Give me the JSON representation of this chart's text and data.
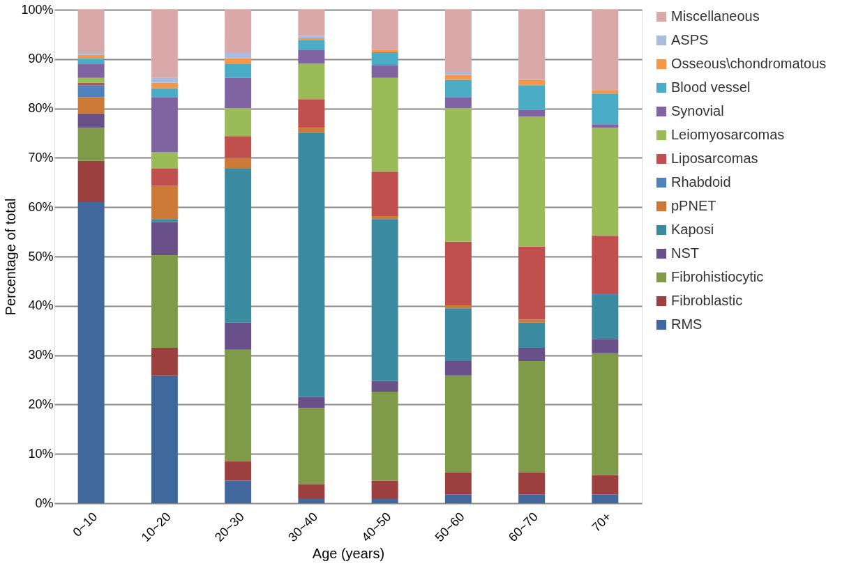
{
  "chart_data": {
    "type": "bar",
    "stacked": true,
    "xlabel": "Age (years)",
    "ylabel": "Percentage of total",
    "categories": [
      "0~10",
      "10~20",
      "20~30",
      "30~40",
      "40~50",
      "50~60",
      "60~70",
      "70+"
    ],
    "series": [
      {
        "name": "RMS",
        "color": "#40689c",
        "values": [
          61.0,
          25.9,
          4.6,
          1.0,
          1.0,
          1.8,
          1.8,
          1.8
        ]
      },
      {
        "name": "Fibroblastic",
        "color": "#9c3f3f",
        "values": [
          8.4,
          5.6,
          3.9,
          2.9,
          3.6,
          4.5,
          4.5,
          3.9
        ]
      },
      {
        "name": "Fibrohistiocytic",
        "color": "#7f9a48",
        "values": [
          6.7,
          18.8,
          22.6,
          15.4,
          18.0,
          19.6,
          22.5,
          24.7
        ]
      },
      {
        "name": "NST",
        "color": "#6a5088",
        "values": [
          2.9,
          6.7,
          5.5,
          2.2,
          2.2,
          2.9,
          2.7,
          2.9
        ]
      },
      {
        "name": "Kaposi",
        "color": "#3a8ba0",
        "values": [
          0,
          0.6,
          31.2,
          53.6,
          32.8,
          10.7,
          5.1,
          8.8
        ]
      },
      {
        "name": "pPNET",
        "color": "#cc7a36",
        "values": [
          3.3,
          6.7,
          2.2,
          1.0,
          0.6,
          0.6,
          0.6,
          0
        ]
      },
      {
        "name": "Rhabdoid",
        "color": "#4f81bd",
        "values": [
          2.4,
          0,
          0,
          0,
          0,
          0,
          0,
          0.4
        ]
      },
      {
        "name": "Liposarcomas",
        "color": "#c0504d",
        "values": [
          0.5,
          3.5,
          4.4,
          5.8,
          9.0,
          12.9,
          14.8,
          11.7
        ]
      },
      {
        "name": "Leiomyosarcomas",
        "color": "#9bbb59",
        "values": [
          1.0,
          3.3,
          5.7,
          7.2,
          19.0,
          27.1,
          26.4,
          21.9
        ]
      },
      {
        "name": "Synovial",
        "color": "#8064a2",
        "values": [
          2.9,
          11.2,
          6.1,
          2.8,
          2.5,
          2.2,
          1.3,
          0.7
        ]
      },
      {
        "name": "Blood vessel",
        "color": "#4bacc6",
        "values": [
          1.1,
          1.8,
          2.9,
          1.9,
          2.7,
          3.5,
          5.0,
          6.2
        ]
      },
      {
        "name": "Osseous\\chondromatous",
        "color": "#f79646",
        "values": [
          0.7,
          1.1,
          1.1,
          0.4,
          0.5,
          1.0,
          1.1,
          0.6
        ]
      },
      {
        "name": "ASPS",
        "color": "#a9bcdf",
        "values": [
          0.5,
          1.0,
          1.2,
          0.5,
          0,
          0.5,
          0,
          0
        ]
      },
      {
        "name": "Miscellaneous",
        "color": "#d9a8a8",
        "values": [
          8.6,
          13.8,
          8.6,
          5.3,
          8.1,
          12.7,
          14.2,
          16.4
        ]
      }
    ],
    "ylim": [
      0,
      100
    ],
    "yticks": [
      {
        "value": 0,
        "label": "0%"
      },
      {
        "value": 10,
        "label": "10%"
      },
      {
        "value": 20,
        "label": "20%"
      },
      {
        "value": 30,
        "label": "30%"
      },
      {
        "value": 40,
        "label": "40%"
      },
      {
        "value": 50,
        "label": "50%"
      },
      {
        "value": 60,
        "label": "60%"
      },
      {
        "value": 70,
        "label": "70%"
      },
      {
        "value": 80,
        "label": "80%"
      },
      {
        "value": 90,
        "label": "90%"
      },
      {
        "value": 100,
        "label": "100%"
      }
    ],
    "grid": "y",
    "legend": "right"
  }
}
